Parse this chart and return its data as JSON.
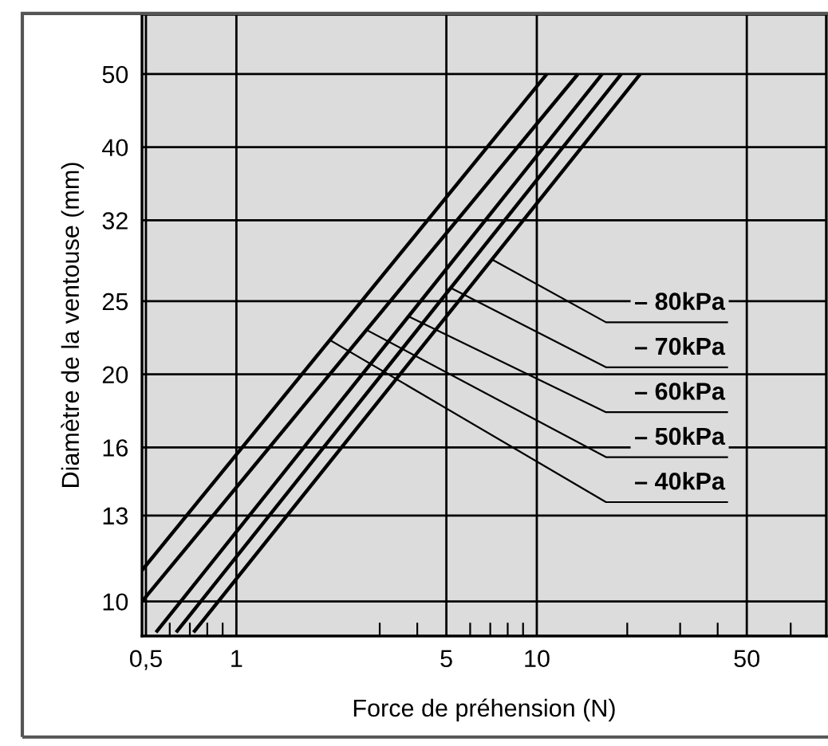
{
  "chart_data": {
    "type": "line",
    "xlabel": "Force de préhension (N)",
    "ylabel": "Diamètre de la ventouse (mm)",
    "log": "xy",
    "grid": true,
    "marker": "none",
    "line_style": "solid",
    "xlim": [
      0.485,
      92
    ],
    "ylim": [
      9,
      60
    ],
    "xticks": [
      {
        "value": 0.5,
        "label": "0,5"
      },
      {
        "value": 0.6,
        "label": null
      },
      {
        "value": 0.7,
        "label": null
      },
      {
        "value": 0.8,
        "label": null
      },
      {
        "value": 0.9,
        "label": null
      },
      1,
      {
        "value": 3,
        "label": null
      },
      {
        "value": 4,
        "label": null
      },
      5,
      {
        "value": 6,
        "label": null
      },
      {
        "value": 7,
        "label": null
      },
      {
        "value": 8,
        "label": null
      },
      {
        "value": 9,
        "label": null
      },
      10,
      {
        "value": 20,
        "label": null
      },
      {
        "value": 30,
        "label": null
      },
      {
        "value": 40,
        "label": null
      },
      50,
      {
        "value": 70,
        "label": null
      }
    ],
    "yticks": [
      10,
      13,
      16,
      20,
      25,
      32,
      40,
      50
    ],
    "series": [
      {
        "name": "– 40kPa",
        "color": "#000000",
        "x": [
          0.485,
          10.8
        ],
        "values": [
          11,
          50
        ]
      },
      {
        "name": "– 50kPa",
        "color": "#000000",
        "x": [
          0.485,
          13.7
        ],
        "values": [
          10,
          50
        ]
      },
      {
        "name": "– 60kPa",
        "color": "#000000",
        "x": [
          0.54,
          16.5
        ],
        "values": [
          9.1,
          50
        ]
      },
      {
        "name": "– 70kPa",
        "color": "#000000",
        "x": [
          0.63,
          19.1
        ],
        "values": [
          9.1,
          50
        ]
      },
      {
        "name": "– 80kPa",
        "color": "#000000",
        "x": [
          0.72,
          22.1
        ],
        "values": [
          9.1,
          50
        ]
      }
    ]
  }
}
